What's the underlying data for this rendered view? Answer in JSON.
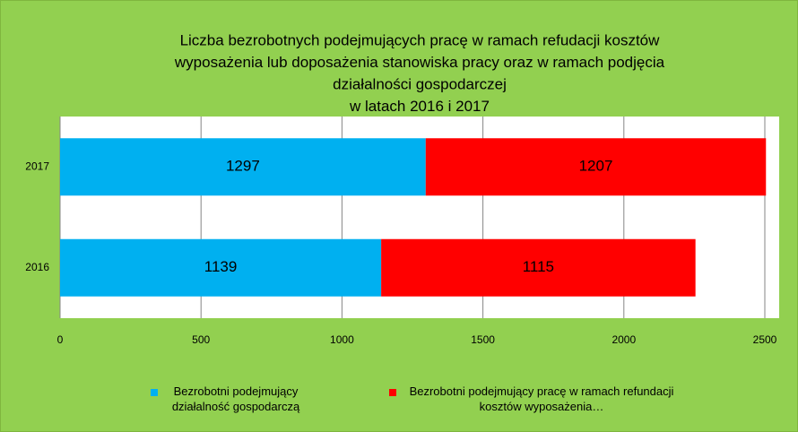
{
  "chart_data": {
    "type": "stacked_barh",
    "title": [
      "Liczba bezrobotnych podejmujących pracę w ramach refudacji kosztów",
      "wyposażenia lub doposażenia stanowiska pracy oraz w ramach podjęcia",
      "działalności gospodarczej",
      "w latach 2016 i 2017"
    ],
    "categories": [
      "2016",
      "2017"
    ],
    "series": [
      {
        "name": "Bezrobotni podejmujący działalność gospodarczą",
        "color": "#00b0f0",
        "values": [
          1139,
          1297
        ]
      },
      {
        "name": "Bezrobotni podejmujący pracę w ramach refundacji kosztów wyposażenia…",
        "color": "#ff0000",
        "values": [
          1115,
          1207
        ]
      }
    ],
    "xlim": [
      0,
      2500
    ],
    "xticks": [
      0,
      500,
      1000,
      1500,
      2000,
      2500
    ],
    "grid": true,
    "legend": "bottom"
  }
}
